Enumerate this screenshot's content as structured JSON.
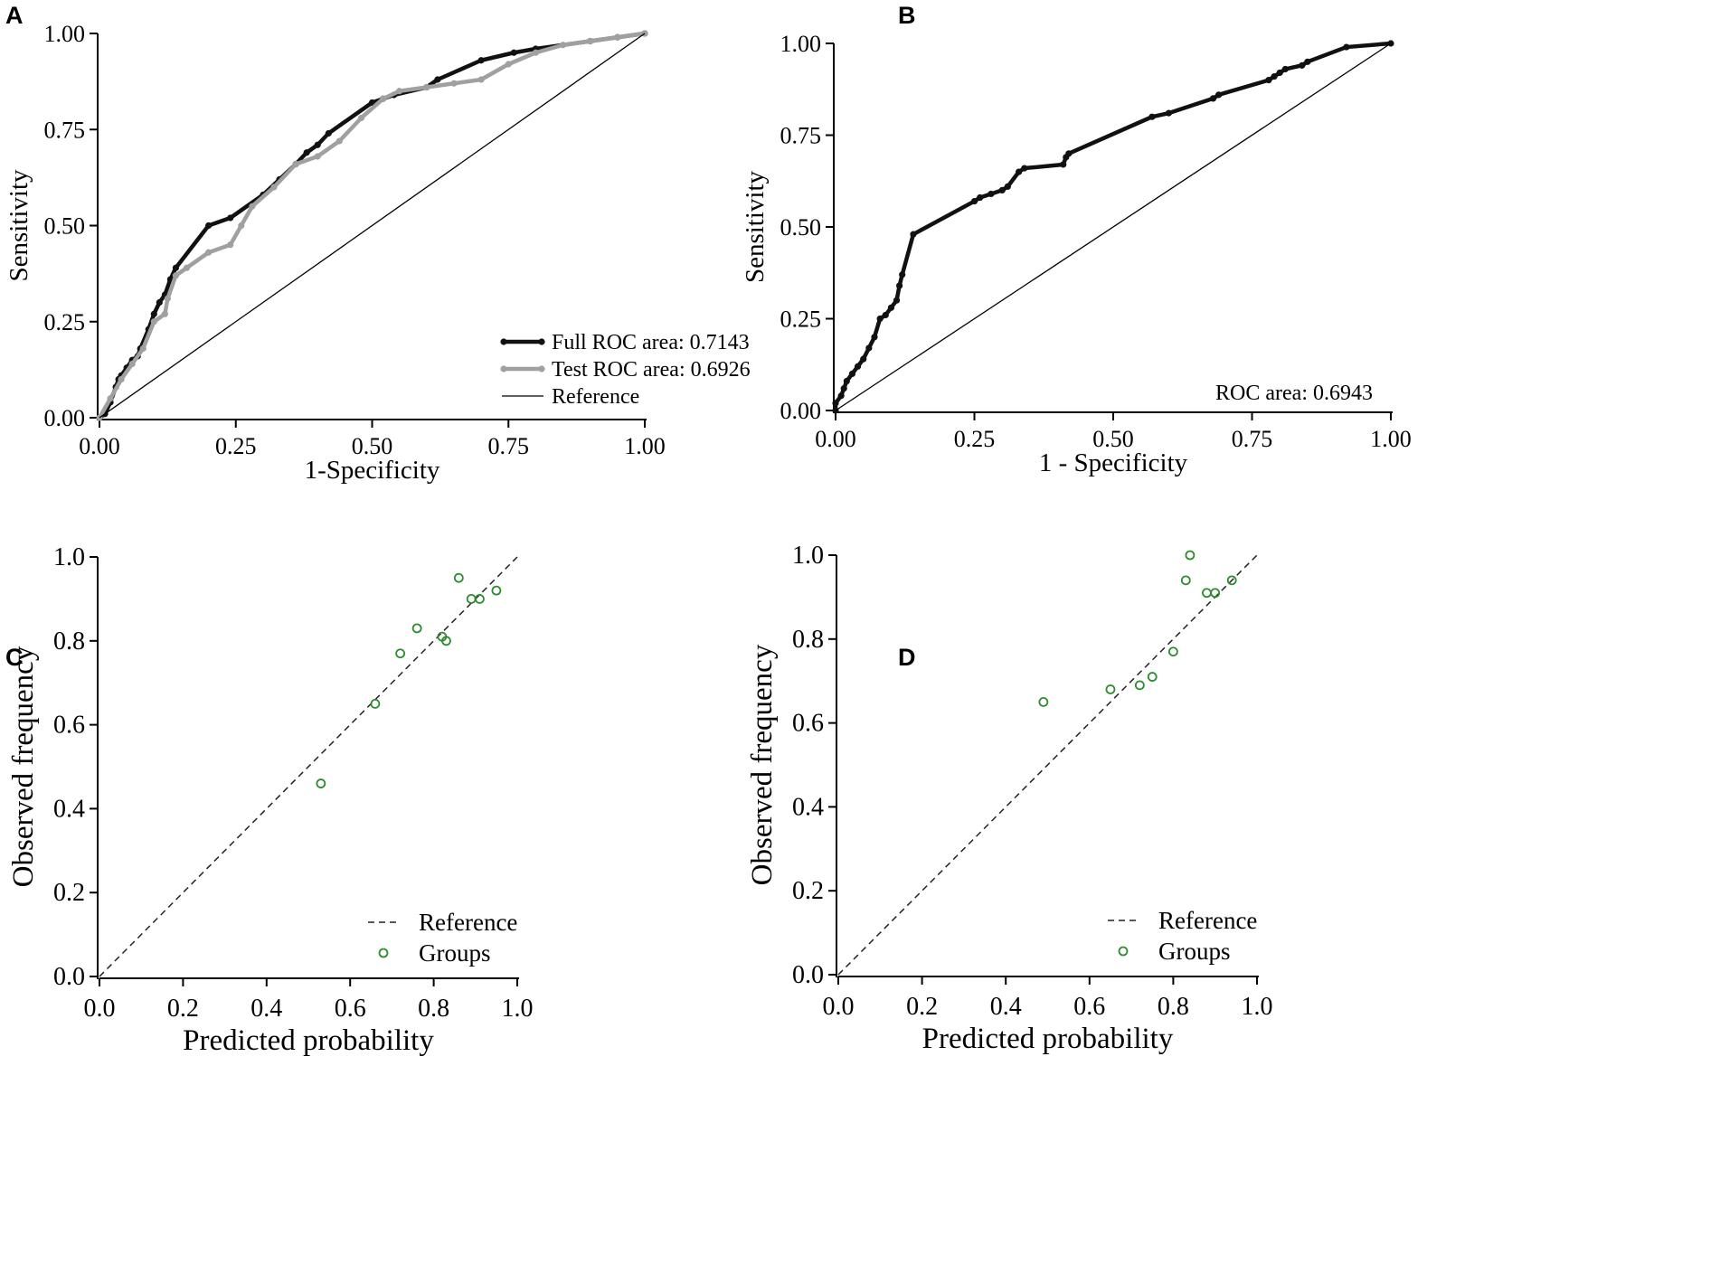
{
  "chart_data": [
    {
      "id": "A",
      "panel_label": "A",
      "type": "line",
      "title": "",
      "xlabel": "1-Specificity",
      "ylabel": "Sensitivity",
      "xlim": [
        0,
        1
      ],
      "ylim": [
        0,
        1
      ],
      "xticks": [
        "0.00",
        "0.25",
        "0.50",
        "0.75",
        "1.00"
      ],
      "yticks": [
        "0.00",
        "0.25",
        "0.50",
        "0.75",
        "1.00"
      ],
      "legend_position": "bottom-right",
      "series": [
        {
          "name": "Full ROC area: 0.7143",
          "color": "#111111",
          "style": "solid-marker",
          "x": [
            0,
            0.01,
            0.02,
            0.03,
            0.035,
            0.04,
            0.05,
            0.06,
            0.07,
            0.075,
            0.09,
            0.1,
            0.11,
            0.12,
            0.13,
            0.14,
            0.2,
            0.24,
            0.3,
            0.33,
            0.36,
            0.38,
            0.4,
            0.42,
            0.5,
            0.52,
            0.54,
            0.6,
            0.62,
            0.7,
            0.76,
            0.8,
            0.9,
            0.95,
            1.0
          ],
          "y": [
            0,
            0.01,
            0.04,
            0.08,
            0.1,
            0.11,
            0.13,
            0.15,
            0.16,
            0.18,
            0.23,
            0.27,
            0.3,
            0.32,
            0.36,
            0.39,
            0.5,
            0.52,
            0.58,
            0.62,
            0.66,
            0.69,
            0.71,
            0.74,
            0.82,
            0.83,
            0.84,
            0.86,
            0.88,
            0.93,
            0.95,
            0.96,
            0.98,
            0.99,
            1.0
          ]
        },
        {
          "name": "Test ROC area: 0.6926",
          "color": "#a0a0a0",
          "style": "solid-marker",
          "x": [
            0,
            0.02,
            0.04,
            0.06,
            0.08,
            0.1,
            0.12,
            0.125,
            0.14,
            0.16,
            0.2,
            0.24,
            0.26,
            0.28,
            0.32,
            0.36,
            0.4,
            0.44,
            0.48,
            0.52,
            0.55,
            0.6,
            0.65,
            0.7,
            0.75,
            0.8,
            0.85,
            0.9,
            0.95,
            1.0
          ],
          "y": [
            0,
            0.05,
            0.1,
            0.14,
            0.18,
            0.25,
            0.27,
            0.31,
            0.37,
            0.39,
            0.43,
            0.45,
            0.5,
            0.55,
            0.6,
            0.66,
            0.68,
            0.72,
            0.78,
            0.83,
            0.85,
            0.86,
            0.87,
            0.88,
            0.92,
            0.95,
            0.97,
            0.98,
            0.99,
            1.0
          ]
        },
        {
          "name": "Reference",
          "color": "#000000",
          "style": "thin-line",
          "x": [
            0,
            1
          ],
          "y": [
            0,
            1
          ]
        }
      ]
    },
    {
      "id": "B",
      "panel_label": "B",
      "type": "line",
      "title": "",
      "xlabel": "1 - Specificity",
      "ylabel": "Sensitivity",
      "xlim": [
        0,
        1
      ],
      "ylim": [
        0,
        1
      ],
      "xticks": [
        "0.00",
        "0.25",
        "0.50",
        "0.75",
        "1.00"
      ],
      "yticks": [
        "0.00",
        "0.25",
        "0.50",
        "0.75",
        "1.00"
      ],
      "annotation": "ROC area: 0.6943",
      "series": [
        {
          "name": "ROC",
          "color": "#111111",
          "style": "solid-marker",
          "x": [
            0,
            0,
            0.01,
            0.015,
            0.02,
            0.03,
            0.04,
            0.05,
            0.06,
            0.07,
            0.08,
            0.09,
            0.1,
            0.11,
            0.115,
            0.12,
            0.14,
            0.25,
            0.26,
            0.28,
            0.3,
            0.31,
            0.33,
            0.34,
            0.41,
            0.415,
            0.42,
            0.57,
            0.6,
            0.68,
            0.69,
            0.78,
            0.79,
            0.8,
            0.81,
            0.84,
            0.85,
            0.92,
            1.0
          ],
          "y": [
            0,
            0.02,
            0.04,
            0.06,
            0.08,
            0.1,
            0.12,
            0.14,
            0.17,
            0.2,
            0.25,
            0.26,
            0.28,
            0.3,
            0.34,
            0.37,
            0.48,
            0.57,
            0.58,
            0.59,
            0.6,
            0.61,
            0.65,
            0.66,
            0.67,
            0.69,
            0.7,
            0.8,
            0.81,
            0.85,
            0.86,
            0.9,
            0.91,
            0.92,
            0.93,
            0.94,
            0.95,
            0.99,
            1.0
          ]
        },
        {
          "name": "Reference",
          "color": "#000000",
          "style": "thin-line",
          "x": [
            0,
            1
          ],
          "y": [
            0,
            1
          ]
        }
      ]
    },
    {
      "id": "C",
      "panel_label": "C",
      "type": "scatter",
      "title": "",
      "xlabel": "Predicted probability",
      "ylabel": "Observed frequency",
      "xlim": [
        0,
        1
      ],
      "ylim": [
        0,
        1
      ],
      "xticks": [
        "0.0",
        "0.2",
        "0.4",
        "0.6",
        "0.8",
        "1.0"
      ],
      "yticks": [
        "0.0",
        "0.2",
        "0.4",
        "0.6",
        "0.8",
        "1.0"
      ],
      "legend_position": "bottom-right",
      "series": [
        {
          "name": "Reference",
          "color": "#222222",
          "style": "dashed-line",
          "x": [
            0,
            1
          ],
          "y": [
            0,
            1
          ]
        },
        {
          "name": "Groups",
          "color": "#2e8b2e",
          "style": "hollow-circle",
          "x": [
            0.53,
            0.66,
            0.72,
            0.76,
            0.82,
            0.83,
            0.86,
            0.89,
            0.91,
            0.95
          ],
          "y": [
            0.46,
            0.65,
            0.77,
            0.83,
            0.81,
            0.8,
            0.95,
            0.9,
            0.9,
            0.92
          ]
        }
      ]
    },
    {
      "id": "D",
      "panel_label": "D",
      "type": "scatter",
      "title": "",
      "xlabel": "Predicted probability",
      "ylabel": "Observed frequency",
      "xlim": [
        0,
        1
      ],
      "ylim": [
        0,
        1
      ],
      "xticks": [
        "0.0",
        "0.2",
        "0.4",
        "0.6",
        "0.8",
        "1.0"
      ],
      "yticks": [
        "0.0",
        "0.2",
        "0.4",
        "0.6",
        "0.8",
        "1.0"
      ],
      "legend_position": "bottom-right",
      "series": [
        {
          "name": "Reference",
          "color": "#222222",
          "style": "dashed-line",
          "x": [
            0,
            1
          ],
          "y": [
            0,
            1
          ]
        },
        {
          "name": "Groups",
          "color": "#2e8b2e",
          "style": "hollow-circle",
          "x": [
            0.49,
            0.65,
            0.72,
            0.75,
            0.8,
            0.83,
            0.84,
            0.88,
            0.9,
            0.94
          ],
          "y": [
            0.65,
            0.68,
            0.69,
            0.71,
            0.77,
            0.94,
            1.0,
            0.91,
            0.91,
            0.94
          ]
        }
      ]
    }
  ]
}
